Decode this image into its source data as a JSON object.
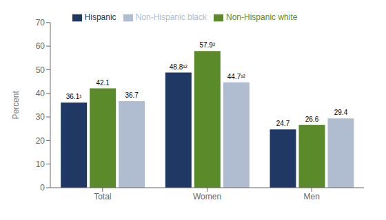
{
  "chart_data": {
    "type": "bar",
    "categories": [
      "Total",
      "Women",
      "Men"
    ],
    "series": [
      {
        "name": "Hispanic",
        "color": "#1f3864",
        "values": [
          36.1,
          48.8,
          24.7
        ],
        "value_labels": [
          "36.1¹",
          "48.8¹²",
          "24.7"
        ]
      },
      {
        "name": "Non-Hispanic white",
        "color": "#5a8a2a",
        "values": [
          42.1,
          57.9,
          26.6
        ],
        "value_labels": [
          "42.1",
          "57.9²",
          "26.6"
        ]
      },
      {
        "name": "Non-Hispanic black",
        "color": "#b0bdd0",
        "values": [
          36.7,
          44.7,
          29.4
        ],
        "value_labels": [
          "36.7",
          "44.7¹²",
          "29.4"
        ]
      }
    ],
    "ylabel": "Percent",
    "ylim": [
      0,
      70
    ],
    "yticks": [
      0,
      10,
      20,
      30,
      40,
      50,
      60,
      70
    ],
    "grid": false,
    "legend": "top",
    "data_labels": true
  }
}
